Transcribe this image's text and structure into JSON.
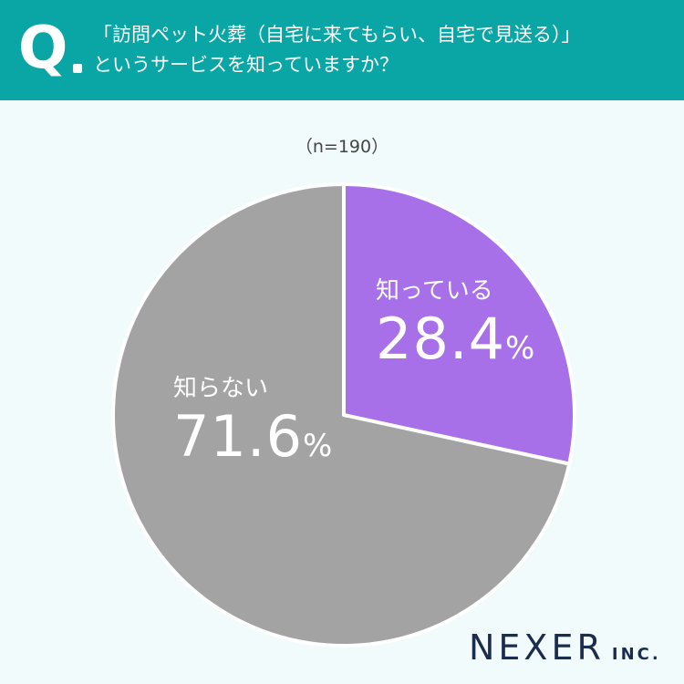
{
  "header": {
    "q_letter": "Q",
    "question_line1": "「訪問ペット火葬（自宅に来てもらい、自宅で見送る）」",
    "question_line2": "というサービスを知っていますか？",
    "background_color": "#0aa6a6"
  },
  "sample_label": "（n=190）",
  "logo": {
    "main": "NEXER",
    "sub": "INC."
  },
  "chart_data": {
    "type": "pie",
    "title": "",
    "sample_size": "n=190",
    "series": [
      {
        "name": "知っている",
        "value": 28.4,
        "value_text": "28.4",
        "unit": "%",
        "color": "#a770e8"
      },
      {
        "name": "知らない",
        "value": 71.6,
        "value_text": "71.6",
        "unit": "%",
        "color": "#a3a3a3"
      }
    ],
    "start_angle": "12 o'clock",
    "direction": "clockwise"
  }
}
